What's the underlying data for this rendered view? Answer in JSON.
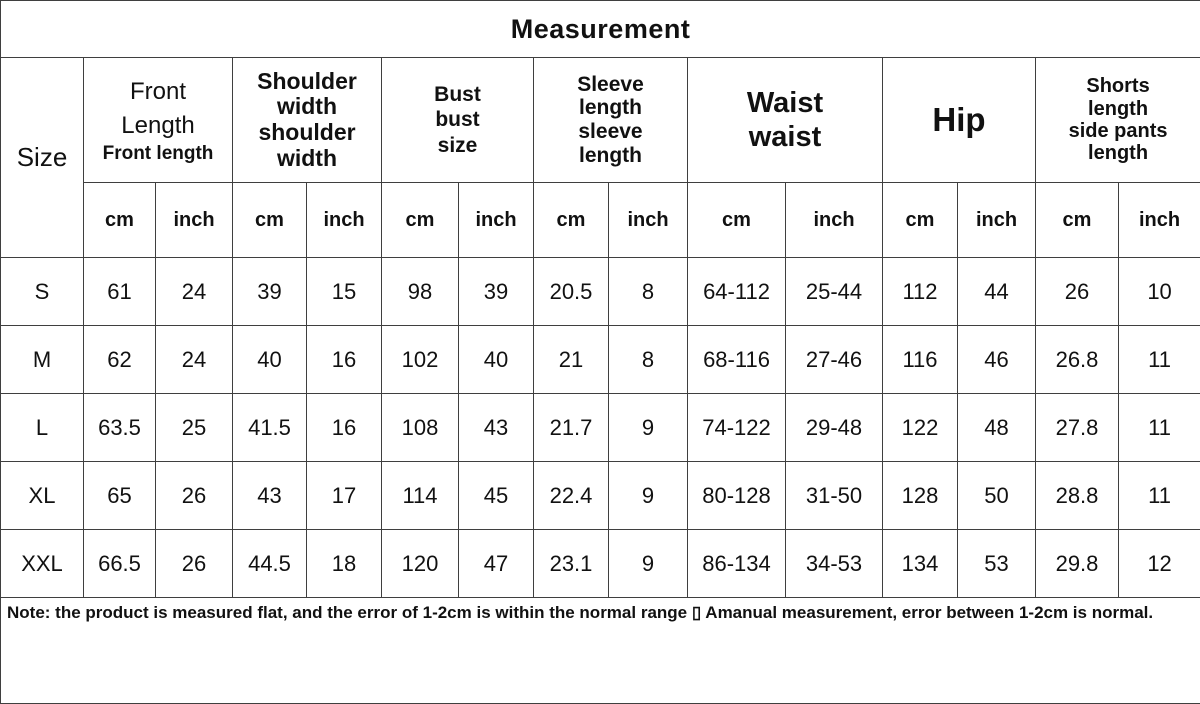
{
  "title": "Measurement",
  "chart_data": {
    "type": "table",
    "title": "Measurement",
    "size_column_label": "Size",
    "units": [
      "cm",
      "inch"
    ],
    "column_groups": [
      {
        "name": "front-length",
        "lines": [
          "Front",
          "Length"
        ],
        "sub": "Front length"
      },
      {
        "name": "shoulder-width",
        "lines": [
          "Shoulder",
          "width",
          "shoulder",
          "width"
        ]
      },
      {
        "name": "bust-size",
        "lines": [
          "Bust",
          "bust",
          "size"
        ]
      },
      {
        "name": "sleeve-length",
        "lines": [
          "Sleeve",
          "length",
          "sleeve",
          "length"
        ]
      },
      {
        "name": "waist",
        "lines": [
          "Waist",
          "waist"
        ]
      },
      {
        "name": "hip",
        "lines": [
          "Hip"
        ]
      },
      {
        "name": "shorts-length",
        "lines": [
          "Shorts",
          "length",
          "side pants",
          "length"
        ]
      }
    ],
    "rows": [
      {
        "size": "S",
        "values": [
          "61",
          "24",
          "39",
          "15",
          "98",
          "39",
          "20.5",
          "8",
          "64-112",
          "25-44",
          "112",
          "44",
          "26",
          "10"
        ]
      },
      {
        "size": "M",
        "values": [
          "62",
          "24",
          "40",
          "16",
          "102",
          "40",
          "21",
          "8",
          "68-116",
          "27-46",
          "116",
          "46",
          "26.8",
          "11"
        ]
      },
      {
        "size": "L",
        "values": [
          "63.5",
          "25",
          "41.5",
          "16",
          "108",
          "43",
          "21.7",
          "9",
          "74-122",
          "29-48",
          "122",
          "48",
          "27.8",
          "11"
        ]
      },
      {
        "size": "XL",
        "values": [
          "65",
          "26",
          "43",
          "17",
          "114",
          "45",
          "22.4",
          "9",
          "80-128",
          "31-50",
          "128",
          "50",
          "28.8",
          "11"
        ]
      },
      {
        "size": "XXL",
        "values": [
          "66.5",
          "26",
          "44.5",
          "18",
          "120",
          "47",
          "23.1",
          "9",
          "86-134",
          "34-53",
          "134",
          "53",
          "29.8",
          "12"
        ]
      }
    ],
    "note": "Note: the product is measured flat, and the error of 1-2cm is within the normal range ▯ Amanual measurement, error between 1-2cm is normal."
  }
}
